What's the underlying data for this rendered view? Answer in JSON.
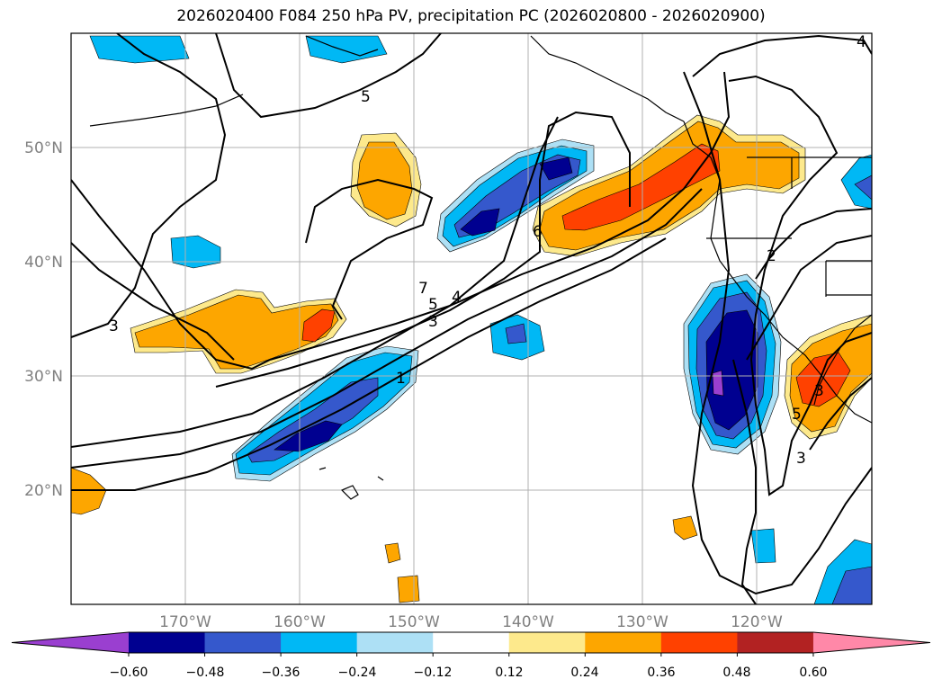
{
  "chart_data": {
    "type": "heatmap",
    "title": "2026020400 F084 250 hPa PV, precipitation PC (2026020800 - 2026020900)",
    "projection": "lat-lon",
    "lon_range": [
      -180,
      -110
    ],
    "lat_range": [
      10,
      60
    ],
    "lat_ticks": [
      "20°N",
      "30°N",
      "40°N",
      "50°N"
    ],
    "lon_ticks": [
      "170°W",
      "160°W",
      "150°W",
      "140°W",
      "130°W",
      "120°W"
    ],
    "lat_tick_values": [
      20,
      30,
      40,
      50
    ],
    "lon_tick_values": [
      -170,
      -160,
      -150,
      -140,
      -130,
      -120
    ],
    "grid": true,
    "colorbar": {
      "orientation": "horizontal",
      "extend": "both",
      "ticks": [
        "−0.60",
        "−0.48",
        "−0.36",
        "−0.24",
        "−0.12",
        "0.12",
        "0.24",
        "0.36",
        "0.48",
        "0.60"
      ],
      "colors": [
        "#9a3fd0",
        "#000090",
        "#3558cc",
        "#00b8f5",
        "#ade0f5",
        "#ffffff",
        "#fde98c",
        "#fda600",
        "#ff4100",
        "#b22222",
        "#ff88a8"
      ]
    },
    "contour_labels": [
      "5",
      "7",
      "5",
      "4",
      "3",
      "1",
      "3",
      "2",
      "3",
      "3",
      "5",
      "6",
      "4"
    ],
    "precip_pc_regions": [
      {
        "level": 0.24,
        "center": [
          -151,
          46
        ]
      },
      {
        "level": 0.36,
        "center": [
          -163,
          34
        ]
      },
      {
        "level": 0.48,
        "center": [
          -131,
          44
        ]
      },
      {
        "level": 0.48,
        "center": [
          -115,
          30
        ]
      },
      {
        "level": -0.48,
        "center": [
          -143,
          44
        ]
      },
      {
        "level": -0.48,
        "center": [
          -157,
          26
        ]
      },
      {
        "level": -0.6,
        "center": [
          -122,
          30
        ]
      },
      {
        "level": -0.24,
        "center": [
          -169,
          41
        ]
      },
      {
        "level": -0.36,
        "center": [
          -141,
          33
        ]
      }
    ]
  }
}
